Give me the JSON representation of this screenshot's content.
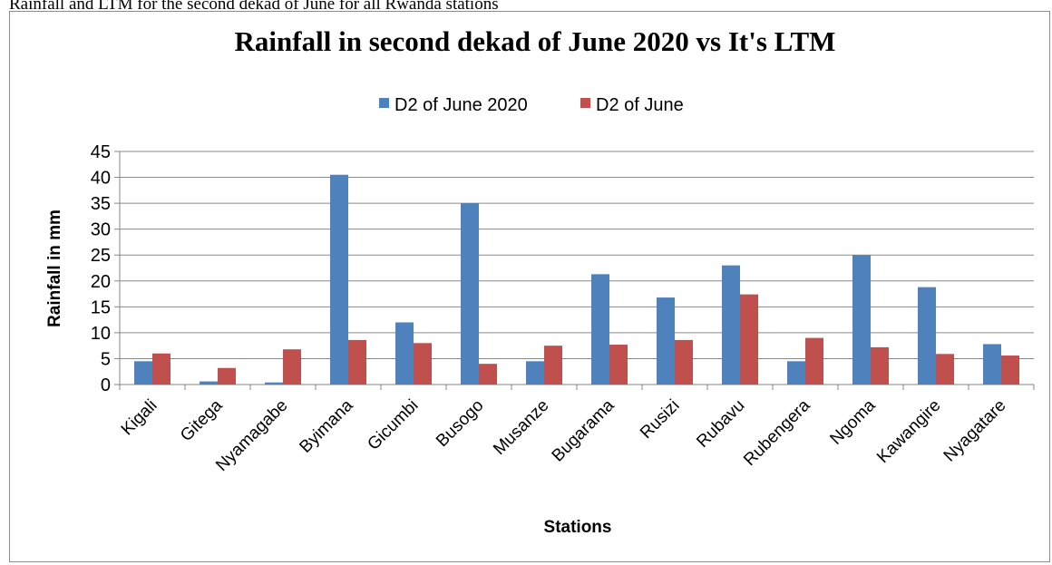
{
  "top_caption": "Rainfall and LTM for the second dekad of June for all Rwanda stations",
  "chart_data": {
    "type": "bar",
    "title": "Rainfall in second dekad of June 2020 vs It's LTM",
    "xlabel": "Stations",
    "ylabel": "Rainfall in mm",
    "ylim": [
      0,
      45
    ],
    "yticks": [
      0,
      5,
      10,
      15,
      20,
      25,
      30,
      35,
      40,
      45
    ],
    "grid": true,
    "legend_position": "top",
    "categories": [
      "Kigali",
      "Gitega",
      "Nyamagabe",
      "Byimana",
      "Gicumbi",
      "Busogo",
      "Musanze",
      "Bugarama",
      "Rusizi",
      "Rubavu",
      "Rubengera",
      "Ngoma",
      "Kawangire",
      "Nyagatare"
    ],
    "series": [
      {
        "name": "D2 of June 2020",
        "color": "#4f81bd",
        "values": [
          4.5,
          0.6,
          0.4,
          40.5,
          12.0,
          35.0,
          4.5,
          21.3,
          16.8,
          23.0,
          4.5,
          25.0,
          18.8,
          7.8
        ]
      },
      {
        "name": "D2 of June",
        "color": "#c0504d",
        "values": [
          6.0,
          3.2,
          6.8,
          8.6,
          8.0,
          4.0,
          7.5,
          7.7,
          8.6,
          17.4,
          9.0,
          7.2,
          5.9,
          5.6
        ]
      }
    ]
  }
}
